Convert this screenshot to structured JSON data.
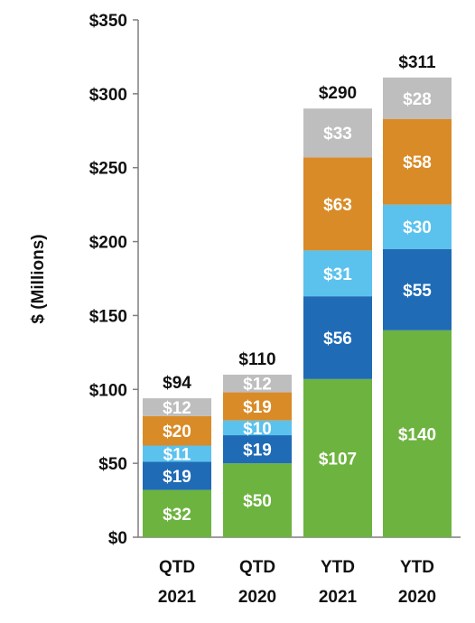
{
  "chart_data": {
    "type": "bar",
    "stacked": true,
    "ylabel": "$ (Millions)",
    "ylim": [
      0,
      350
    ],
    "yticks": [
      0,
      50,
      100,
      150,
      200,
      250,
      300,
      350
    ],
    "ytick_labels": [
      "$0",
      "$50",
      "$100",
      "$150",
      "$200",
      "$250",
      "$300",
      "$350"
    ],
    "categories": [
      {
        "line1": "QTD",
        "line2": "2021"
      },
      {
        "line1": "QTD",
        "line2": "2020"
      },
      {
        "line1": "YTD",
        "line2": "2021"
      },
      {
        "line1": "YTD",
        "line2": "2020"
      }
    ],
    "series": [
      {
        "color": "#6DB33F",
        "values": [
          32,
          50,
          107,
          140
        ],
        "labels": [
          "$32",
          "$50",
          "$107",
          "$140"
        ]
      },
      {
        "color": "#1F6BB5",
        "values": [
          19,
          19,
          56,
          55
        ],
        "labels": [
          "$19",
          "$19",
          "$56",
          "$55"
        ]
      },
      {
        "color": "#5BC2EE",
        "values": [
          11,
          10,
          31,
          30
        ],
        "labels": [
          "$11",
          "$10",
          "$31",
          "$30"
        ]
      },
      {
        "color": "#D98B27",
        "values": [
          20,
          19,
          63,
          58
        ],
        "labels": [
          "$20",
          "$19",
          "$63",
          "$58"
        ]
      },
      {
        "color": "#BEBEBE",
        "values": [
          12,
          12,
          33,
          28
        ],
        "labels": [
          "$12",
          "$12",
          "$33",
          "$28"
        ]
      }
    ],
    "totals": [
      94,
      110,
      290,
      311
    ],
    "total_labels": [
      "$94",
      "$110",
      "$290",
      "$311"
    ],
    "grid": false,
    "legend": "none"
  }
}
